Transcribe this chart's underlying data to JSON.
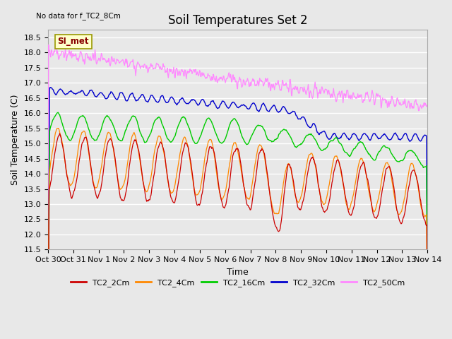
{
  "title": "Soil Temperatures Set 2",
  "subtitle": "No data for f_TC2_8Cm",
  "xlabel": "Time",
  "ylabel": "Soil Temperature (C)",
  "ylim": [
    11.5,
    18.75
  ],
  "date_labels": [
    "Oct 30",
    "Oct 31",
    "Nov 1",
    "Nov 2",
    "Nov 3",
    "Nov 4",
    "Nov 5",
    "Nov 6",
    "Nov 7",
    "Nov 8",
    "Nov 9",
    "Nov 10",
    "Nov 11",
    "Nov 12",
    "Nov 13",
    "Nov 14"
  ],
  "colors": {
    "TC2_2Cm": "#cc0000",
    "TC2_4Cm": "#ff8800",
    "TC2_16Cm": "#00cc00",
    "TC2_32Cm": "#0000cc",
    "TC2_50Cm": "#ff88ff"
  },
  "background_color": "#e8e8e8",
  "plot_bg_color": "#e8e8e8",
  "si_met_box_color": "#ffffcc",
  "si_met_text_color": "#880000",
  "grid_color": "#ffffff",
  "title_fontsize": 12,
  "axis_label_fontsize": 9,
  "tick_fontsize": 8,
  "yticks": [
    11.5,
    12.0,
    12.5,
    13.0,
    13.5,
    14.0,
    14.5,
    15.0,
    15.5,
    16.0,
    16.5,
    17.0,
    17.5,
    18.0,
    18.5
  ]
}
